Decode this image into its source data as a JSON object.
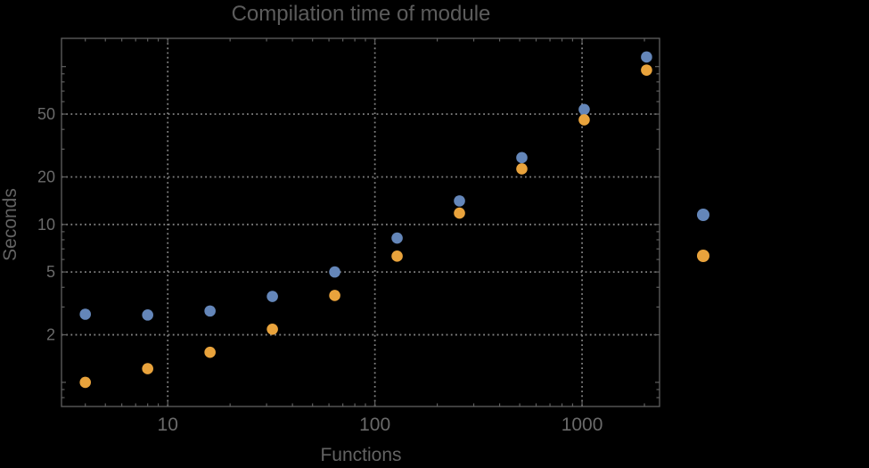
{
  "colors": {
    "background": "#000000",
    "frame": "#5f5f5f",
    "grid": "#828282",
    "title_text": "#5c5c5c",
    "label_text": "#636363",
    "tick_text": "#6a6a6a",
    "series_blue": "#6486b9",
    "series_orange": "#e9a33c"
  },
  "chart_data": {
    "type": "scatter",
    "title": "Compilation time of module",
    "xlabel": "Functions",
    "ylabel": "Seconds",
    "log_x": true,
    "log_y": true,
    "grid": "dotted",
    "x": [
      4,
      8,
      16,
      32,
      64,
      128,
      256,
      512,
      1024,
      2048
    ],
    "series": [
      {
        "name": "series-1-blue",
        "color": "#6486b9",
        "values": [
          2.7,
          2.67,
          2.83,
          3.5,
          5.0,
          8.2,
          14.1,
          26.5,
          53.5,
          115
        ]
      },
      {
        "name": "series-2-orange",
        "color": "#e9a33c",
        "values": [
          1.0,
          1.22,
          1.55,
          2.17,
          3.55,
          6.3,
          11.8,
          22.5,
          46,
          95
        ]
      }
    ],
    "x_ticks": [
      10,
      100,
      1000
    ],
    "x_tick_labels": [
      "10",
      "100",
      "1000"
    ],
    "y_ticks": [
      2,
      5,
      10,
      20,
      50
    ],
    "y_tick_labels": [
      "2",
      "5",
      "10",
      "20",
      "50"
    ],
    "x_range": [
      3.07,
      2366
    ],
    "y_range": [
      0.703,
      151
    ],
    "legend": {
      "position": "right-of-frame",
      "labels_visible": false,
      "markers": [
        {
          "series": "series-1-blue",
          "color": "#6486b9"
        },
        {
          "series": "series-2-orange",
          "color": "#e9a33c"
        }
      ]
    }
  }
}
